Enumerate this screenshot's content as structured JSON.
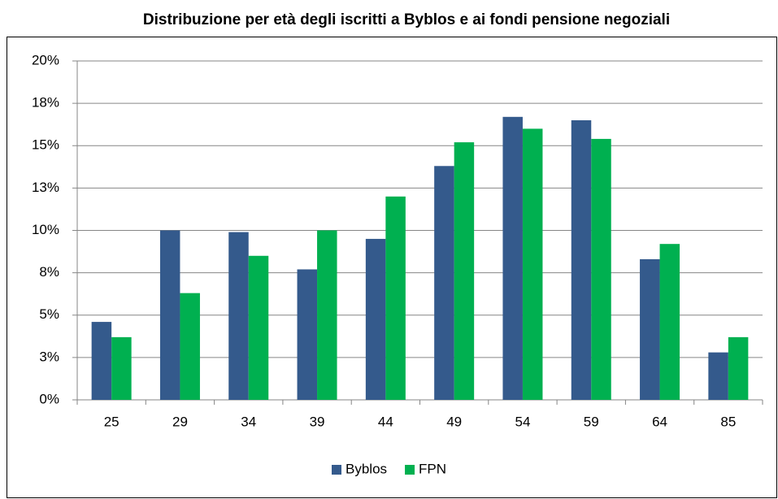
{
  "chart_data": {
    "type": "bar",
    "title": "Distribuzione per età degli iscritti a Byblos e ai fondi pensione negoziali",
    "categories": [
      "25",
      "29",
      "34",
      "39",
      "44",
      "49",
      "54",
      "59",
      "64",
      "85"
    ],
    "series": [
      {
        "name": "Byblos",
        "color": "#345a8c",
        "values": [
          4.6,
          10.0,
          9.9,
          7.7,
          9.5,
          13.8,
          16.7,
          16.5,
          8.3,
          2.8
        ]
      },
      {
        "name": "FPN",
        "color": "#00b050",
        "values": [
          3.7,
          6.3,
          8.5,
          10.0,
          12.0,
          15.2,
          16.0,
          15.4,
          9.2,
          3.7
        ]
      }
    ],
    "ylim": [
      0,
      20
    ],
    "yticks": [
      {
        "value": 0,
        "label": "0%"
      },
      {
        "value": 2.5,
        "label": "3%"
      },
      {
        "value": 5,
        "label": "5%"
      },
      {
        "value": 7.5,
        "label": "8%"
      },
      {
        "value": 10,
        "label": "10%"
      },
      {
        "value": 12.5,
        "label": "13%"
      },
      {
        "value": 15,
        "label": "15%"
      },
      {
        "value": 17.5,
        "label": "18%"
      },
      {
        "value": 20,
        "label": "20%"
      }
    ],
    "grid": true,
    "legend": "bottom"
  }
}
